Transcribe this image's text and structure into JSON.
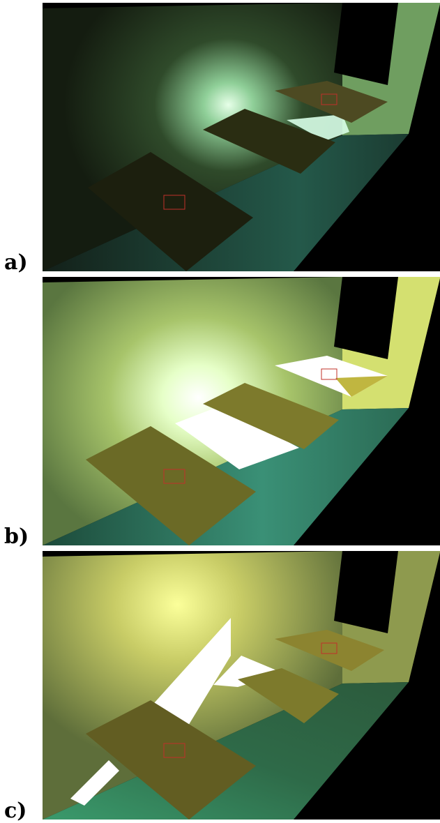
{
  "figure": {
    "panels": [
      {
        "label": "a)",
        "lighting": "dim",
        "colors": {
          "wall": "#1c2616",
          "wall_glow": "#d8ffe0",
          "floor": "#1f3a30",
          "floor_light": "#2b6f57",
          "plate": "#2a2d12",
          "plate_far": "#4d4a22",
          "right_wall": "#5d8a55",
          "marker": "#c0302a"
        }
      },
      {
        "label": "b)",
        "lighting": "bright",
        "colors": {
          "wall": "#5c7842",
          "wall_glow": "#fbffa8",
          "floor": "#1f5a44",
          "floor_light": "#3f9c7a",
          "plate": "#6b6a26",
          "plate_far": "#b7ae3a",
          "right_wall": "#c8d46a",
          "marker": "#c0302a"
        }
      },
      {
        "label": "c)",
        "lighting": "bright-side",
        "colors": {
          "wall": "#5a6a36",
          "wall_glow": "#f8ff9a",
          "floor": "#2c5a3c",
          "floor_light": "#4fae80",
          "plate": "#625d22",
          "plate_far": "#8c8430",
          "right_wall": "#8e9a4e",
          "marker": "#c0302a"
        }
      }
    ]
  }
}
